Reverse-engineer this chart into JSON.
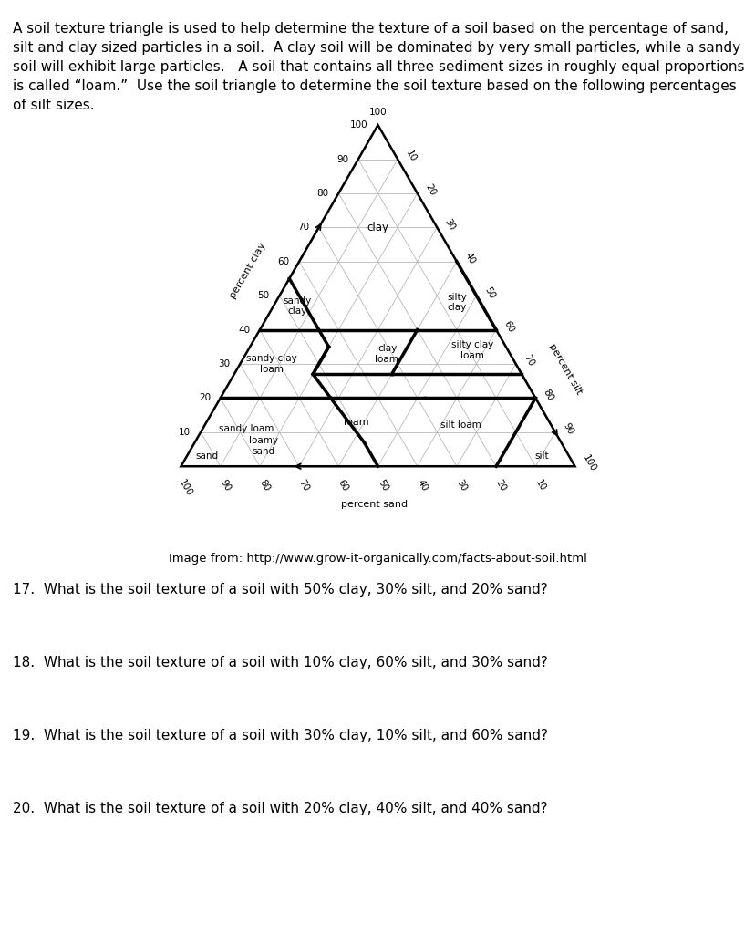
{
  "intro_text_lines": [
    "A soil texture triangle is used to help determine the texture of a soil based on the percentage of sand,",
    "silt and clay sized particles in a soil.  A clay soil will be dominated by very small particles, while a sandy",
    "soil will exhibit large particles.   A soil that contains all three sediment sizes in roughly equal proportions",
    "is called “loam.”  Use the soil triangle to determine the soil texture based on the following percentages",
    "of silt sizes."
  ],
  "image_credit": "Image from: http://www.grow-it-organically.com/facts-about-soil.html",
  "questions": [
    "17.  What is the soil texture of a soil with 50% clay, 30% silt, and 20% sand?",
    "18.  What is the soil texture of a soil with 10% clay, 60% silt, and 30% sand?",
    "19.  What is the soil texture of a soil with 30% clay, 10% silt, and 60% sand?",
    "20.  What is the soil texture of a soil with 20% clay, 40% silt, and 40% sand?"
  ],
  "bg_color": "#ffffff",
  "grid_color": "#aaaaaa",
  "border_color": "#000000",
  "thick_line_color": "#000000",
  "grid_lw": 0.5,
  "outer_lw": 1.8,
  "thick_lw": 2.5,
  "tick_fontsize": 7.5,
  "axis_label_fontsize": 8.0,
  "region_fontsize": 7.5,
  "intro_fontsize": 11.0,
  "question_fontsize": 11.0,
  "credit_fontsize": 9.5,
  "thick_segments": [
    [
      [
        40,
        0,
        60
      ],
      [
        40,
        40,
        20
      ]
    ],
    [
      [
        40,
        40,
        20
      ],
      [
        40,
        60,
        0
      ]
    ],
    [
      [
        60,
        40,
        0
      ],
      [
        40,
        60,
        0
      ]
    ],
    [
      [
        55,
        0,
        45
      ],
      [
        35,
        20,
        45
      ]
    ],
    [
      [
        35,
        20,
        45
      ],
      [
        27,
        20,
        53
      ]
    ],
    [
      [
        40,
        40,
        20
      ],
      [
        27,
        40,
        33
      ]
    ],
    [
      [
        35,
        20,
        45
      ],
      [
        27,
        20,
        53
      ]
    ],
    [
      [
        27,
        20,
        53
      ],
      [
        27,
        40,
        33
      ]
    ],
    [
      [
        27,
        40,
        33
      ],
      [
        27,
        73,
        0
      ]
    ],
    [
      [
        20,
        0,
        80
      ],
      [
        20,
        52,
        28
      ]
    ],
    [
      [
        20,
        52,
        28
      ],
      [
        20,
        80,
        0
      ]
    ],
    [
      [
        0,
        80,
        20
      ],
      [
        20,
        80,
        0
      ]
    ],
    [
      [
        0,
        50,
        50
      ],
      [
        7,
        43,
        50
      ]
    ],
    [
      [
        7,
        43,
        50
      ],
      [
        20,
        28,
        52
      ]
    ],
    [
      [
        20,
        28,
        52
      ],
      [
        27,
        20,
        53
      ]
    ]
  ],
  "region_labels": [
    {
      "clay": 70,
      "silt": 15,
      "sand": 15,
      "text": "clay",
      "fs": 8.5
    },
    {
      "clay": 47,
      "silt": 6,
      "sand": 47,
      "text": "sandy\nclay",
      "fs": 7.5
    },
    {
      "clay": 48,
      "silt": 46,
      "sand": 6,
      "text": "silty\nclay",
      "fs": 7.5
    },
    {
      "clay": 33,
      "silt": 36,
      "sand": 31,
      "text": "clay\nloam,",
      "fs": 7.5
    },
    {
      "clay": 30,
      "silt": 8,
      "sand": 62,
      "text": "sandy clay\nloam",
      "fs": 7.5
    },
    {
      "clay": 34,
      "silt": 57,
      "sand": 9,
      "text": "silty clay\nloam",
      "fs": 7.5
    },
    {
      "clay": 11,
      "silt": 11,
      "sand": 78,
      "text": "sandy loam",
      "fs": 7.5
    },
    {
      "clay": 12,
      "silt": 65,
      "sand": 23,
      "text": "silt loam",
      "fs": 7.5
    },
    {
      "clay": 13,
      "silt": 38,
      "sand": 49,
      "text": "loam",
      "fs": 8.0
    },
    {
      "clay": 3,
      "silt": 90,
      "sand": 7,
      "text": "silt",
      "fs": 7.5
    },
    {
      "clay": 3,
      "silt": 5,
      "sand": 92,
      "text": "sand",
      "fs": 7.5
    },
    {
      "clay": 6,
      "silt": 18,
      "sand": 76,
      "text": "loamy\nsand",
      "fs": 7.5
    }
  ]
}
